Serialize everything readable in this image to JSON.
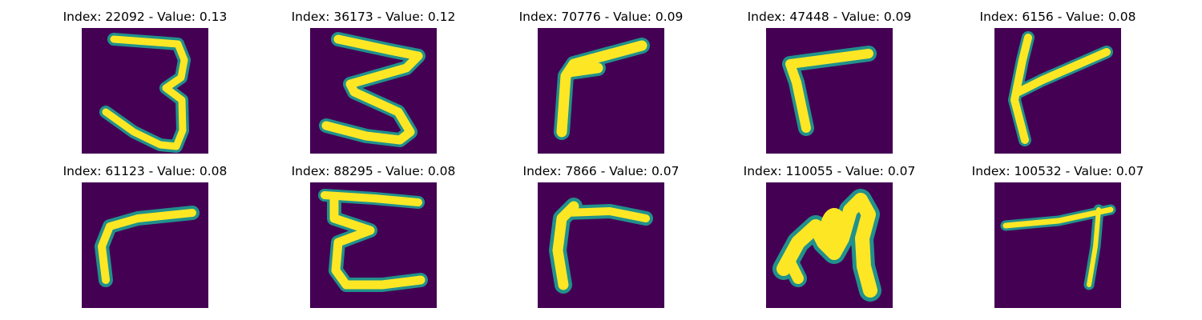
{
  "figure": {
    "colors": {
      "background": "#440154",
      "mid": "#21918c",
      "edge": "#35b779",
      "stroke": "#fde725"
    },
    "panels": [
      {
        "index": "22092",
        "value": "0.13",
        "title": "Index: 22092 - Value: 0.13",
        "glyph": "three-icon"
      },
      {
        "index": "36173",
        "value": "0.12",
        "title": "Index: 36173 - Value: 0.12",
        "glyph": "zigzag-three-icon"
      },
      {
        "index": "70776",
        "value": "0.09",
        "title": "Index: 70776 - Value: 0.09",
        "glyph": "slanted-r-icon"
      },
      {
        "index": "47448",
        "value": "0.09",
        "title": "Index: 47448 - Value: 0.09",
        "glyph": "r-icon"
      },
      {
        "index": "6156",
        "value": "0.08",
        "title": "Index: 6156 - Value: 0.08",
        "glyph": "k-icon"
      },
      {
        "index": "61123",
        "value": "0.08",
        "title": "Index: 61123 - Value: 0.08",
        "glyph": "r-icon"
      },
      {
        "index": "88295",
        "value": "0.08",
        "title": "Index: 88295 - Value: 0.08",
        "glyph": "e-icon"
      },
      {
        "index": "7866",
        "value": "0.07",
        "title": "Index: 7866 - Value: 0.07",
        "glyph": "r-icon"
      },
      {
        "index": "110055",
        "value": "0.07",
        "title": "Index: 110055 - Value: 0.07",
        "glyph": "m-icon"
      },
      {
        "index": "100532",
        "value": "0.07",
        "title": "Index: 100532 - Value: 0.07",
        "glyph": "t-icon"
      }
    ]
  }
}
